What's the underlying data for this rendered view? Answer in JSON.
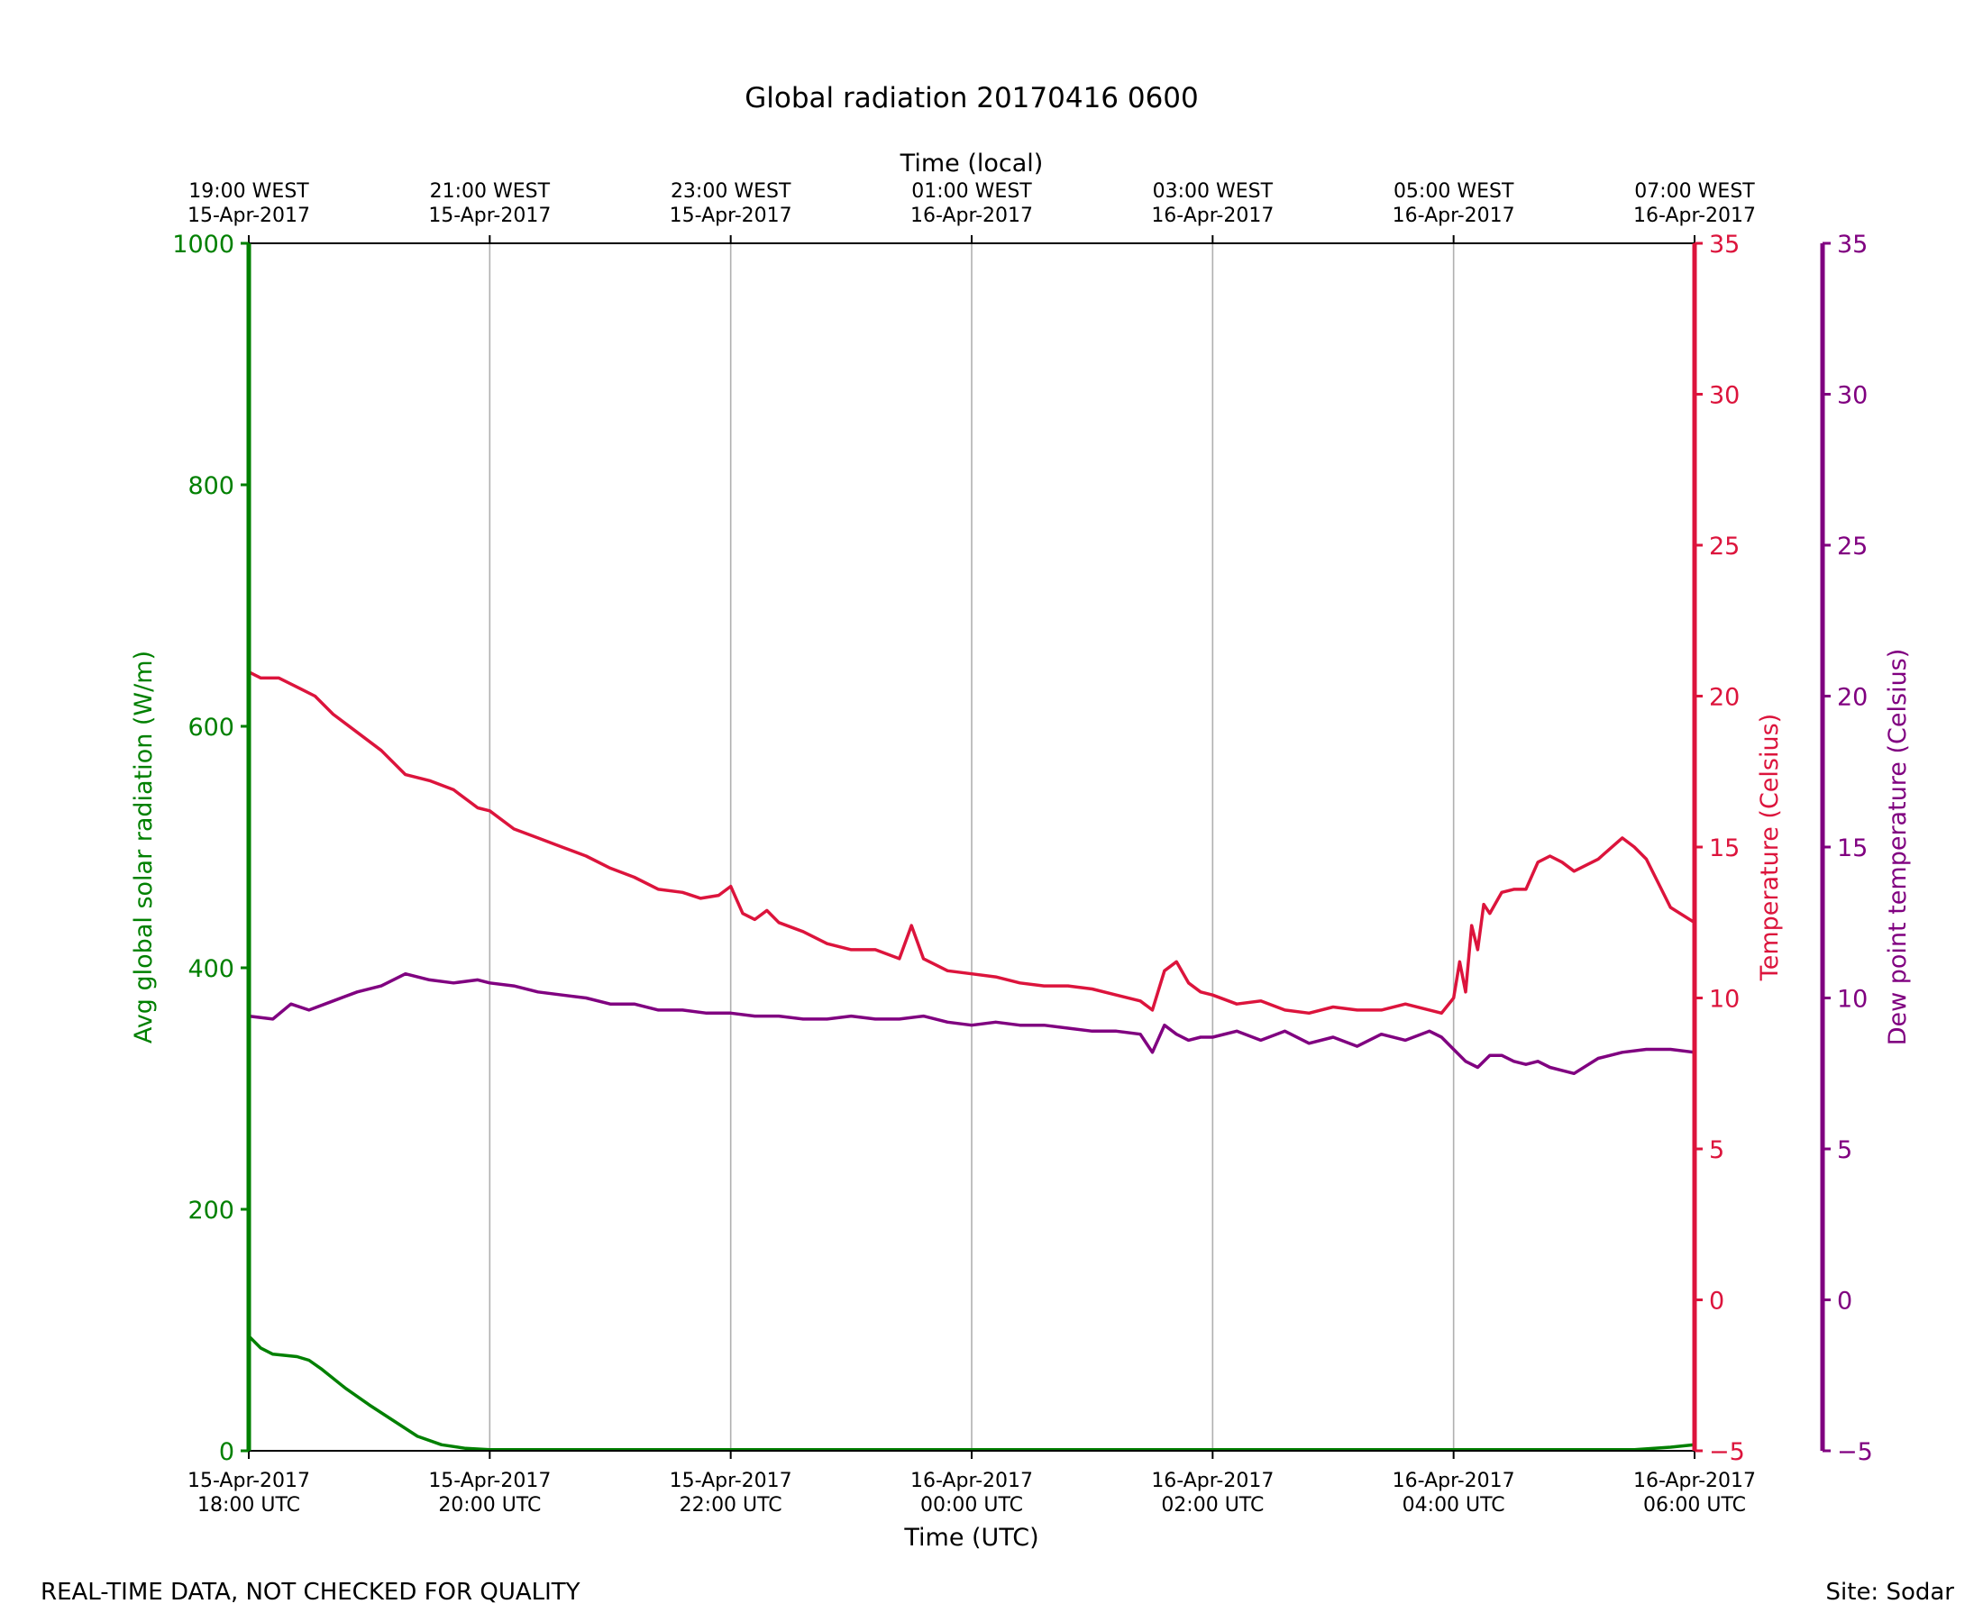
{
  "chart_data": {
    "type": "line",
    "title": "Global radiation 20170416 0600",
    "footer_left": "REAL-TIME DATA, NOT CHECKED FOR QUALITY",
    "footer_right": "Site: Sodar",
    "x_axis": {
      "label": "Time (UTC)",
      "range_hours_utc": [
        18,
        30
      ],
      "ticks": [
        {
          "hour": 18,
          "date": "15-Apr-2017",
          "time": "18:00 UTC"
        },
        {
          "hour": 20,
          "date": "15-Apr-2017",
          "time": "20:00 UTC"
        },
        {
          "hour": 22,
          "date": "15-Apr-2017",
          "time": "22:00 UTC"
        },
        {
          "hour": 24,
          "date": "16-Apr-2017",
          "time": "00:00 UTC"
        },
        {
          "hour": 26,
          "date": "16-Apr-2017",
          "time": "02:00 UTC"
        },
        {
          "hour": 28,
          "date": "16-Apr-2017",
          "time": "04:00 UTC"
        },
        {
          "hour": 30,
          "date": "16-Apr-2017",
          "time": "06:00 UTC"
        }
      ]
    },
    "x_axis_top": {
      "label": "Time (local)",
      "ticks": [
        {
          "hour": 18,
          "time": "19:00 WEST",
          "date": "15-Apr-2017"
        },
        {
          "hour": 20,
          "time": "21:00 WEST",
          "date": "15-Apr-2017"
        },
        {
          "hour": 22,
          "time": "23:00 WEST",
          "date": "15-Apr-2017"
        },
        {
          "hour": 24,
          "time": "01:00 WEST",
          "date": "16-Apr-2017"
        },
        {
          "hour": 26,
          "time": "03:00 WEST",
          "date": "16-Apr-2017"
        },
        {
          "hour": 28,
          "time": "05:00 WEST",
          "date": "16-Apr-2017"
        },
        {
          "hour": 30,
          "time": "07:00 WEST",
          "date": "16-Apr-2017"
        }
      ]
    },
    "y_axis_left": {
      "label": "Avg global solar radiation (W/m)",
      "range": [
        0,
        1000
      ],
      "ticks": [
        "0",
        "200",
        "400",
        "600",
        "800",
        "1000"
      ],
      "color": "#008000"
    },
    "y_axis_right": {
      "label": "Temperature (Celsius)",
      "range": [
        -5,
        35
      ],
      "ticks": [
        "−5",
        "0",
        "5",
        "10",
        "15",
        "20",
        "25",
        "30",
        "35"
      ],
      "color": "#dc143c"
    },
    "y_axis_right2": {
      "label": "Dew point temperature (Celsius)",
      "range": [
        -5,
        35
      ],
      "ticks": [
        "−5",
        "0",
        "5",
        "10",
        "15",
        "20",
        "25",
        "30",
        "35"
      ],
      "color": "#800080"
    },
    "grid": {
      "vertical": true,
      "horizontal": false,
      "color": "#b0b0b0"
    },
    "series": [
      {
        "axis": "left",
        "color": "#008000",
        "x": [
          18.0,
          18.1,
          18.2,
          18.4,
          18.5,
          18.6,
          18.8,
          19.0,
          19.2,
          19.4,
          19.6,
          19.8,
          20.0,
          21.0,
          22.0,
          23.0,
          24.0,
          25.0,
          26.0,
          27.0,
          28.0,
          29.0,
          29.5,
          29.8,
          30.0
        ],
        "values": [
          95,
          85,
          80,
          78,
          75,
          68,
          52,
          38,
          25,
          12,
          5,
          2,
          1,
          1,
          1,
          1,
          1,
          1,
          1,
          1,
          1,
          1,
          1,
          3,
          5
        ]
      },
      {
        "axis": "right",
        "color": "#dc143c",
        "x": [
          18.0,
          18.1,
          18.25,
          18.4,
          18.55,
          18.7,
          18.9,
          19.1,
          19.3,
          19.5,
          19.7,
          19.9,
          20.0,
          20.2,
          20.4,
          20.6,
          20.8,
          21.0,
          21.2,
          21.4,
          21.6,
          21.75,
          21.9,
          22.0,
          22.1,
          22.2,
          22.3,
          22.4,
          22.6,
          22.8,
          23.0,
          23.2,
          23.4,
          23.5,
          23.6,
          23.8,
          24.0,
          24.2,
          24.4,
          24.6,
          24.8,
          25.0,
          25.2,
          25.4,
          25.5,
          25.6,
          25.7,
          25.8,
          25.9,
          26.0,
          26.2,
          26.4,
          26.6,
          26.8,
          27.0,
          27.2,
          27.4,
          27.6,
          27.8,
          27.9,
          28.0,
          28.05,
          28.1,
          28.15,
          28.2,
          28.25,
          28.3,
          28.4,
          28.5,
          28.6,
          28.7,
          28.8,
          28.9,
          29.0,
          29.2,
          29.4,
          29.5,
          29.6,
          29.8,
          30.0
        ],
        "values": [
          20.8,
          20.6,
          20.6,
          20.3,
          20.0,
          19.4,
          18.8,
          18.2,
          17.4,
          17.2,
          16.9,
          16.3,
          16.2,
          15.6,
          15.3,
          15.0,
          14.7,
          14.3,
          14.0,
          13.6,
          13.5,
          13.3,
          13.4,
          13.7,
          12.8,
          12.6,
          12.9,
          12.5,
          12.2,
          11.8,
          11.6,
          11.6,
          11.3,
          12.4,
          11.3,
          10.9,
          10.8,
          10.7,
          10.5,
          10.4,
          10.4,
          10.3,
          10.1,
          9.9,
          9.6,
          10.9,
          11.2,
          10.5,
          10.2,
          10.1,
          9.8,
          9.9,
          9.6,
          9.5,
          9.7,
          9.6,
          9.6,
          9.8,
          9.6,
          9.5,
          10.0,
          11.2,
          10.2,
          12.4,
          11.6,
          13.1,
          12.8,
          13.5,
          13.6,
          13.6,
          14.5,
          14.7,
          14.5,
          14.2,
          14.6,
          15.3,
          15.0,
          14.6,
          13.0,
          12.5
        ]
      },
      {
        "axis": "right2",
        "color": "#800080",
        "x": [
          18.0,
          18.2,
          18.35,
          18.5,
          18.7,
          18.9,
          19.1,
          19.3,
          19.5,
          19.7,
          19.9,
          20.0,
          20.2,
          20.4,
          20.6,
          20.8,
          21.0,
          21.2,
          21.4,
          21.6,
          21.8,
          22.0,
          22.2,
          22.4,
          22.6,
          22.8,
          23.0,
          23.2,
          23.4,
          23.6,
          23.8,
          24.0,
          24.2,
          24.4,
          24.6,
          24.8,
          25.0,
          25.2,
          25.4,
          25.5,
          25.6,
          25.7,
          25.8,
          25.9,
          26.0,
          26.2,
          26.4,
          26.6,
          26.8,
          27.0,
          27.2,
          27.4,
          27.6,
          27.8,
          27.9,
          28.0,
          28.1,
          28.2,
          28.3,
          28.4,
          28.5,
          28.6,
          28.7,
          28.8,
          28.9,
          29.0,
          29.2,
          29.4,
          29.6,
          29.8,
          30.0
        ],
        "values": [
          9.4,
          9.3,
          9.8,
          9.6,
          9.9,
          10.2,
          10.4,
          10.8,
          10.6,
          10.5,
          10.6,
          10.5,
          10.4,
          10.2,
          10.1,
          10.0,
          9.8,
          9.8,
          9.6,
          9.6,
          9.5,
          9.5,
          9.4,
          9.4,
          9.3,
          9.3,
          9.4,
          9.3,
          9.3,
          9.4,
          9.2,
          9.1,
          9.2,
          9.1,
          9.1,
          9.0,
          8.9,
          8.9,
          8.8,
          8.2,
          9.1,
          8.8,
          8.6,
          8.7,
          8.7,
          8.9,
          8.6,
          8.9,
          8.5,
          8.7,
          8.4,
          8.8,
          8.6,
          8.9,
          8.7,
          8.3,
          7.9,
          7.7,
          8.1,
          8.1,
          7.9,
          7.8,
          7.9,
          7.7,
          7.6,
          7.5,
          8.0,
          8.2,
          8.3,
          8.3,
          8.2
        ]
      }
    ]
  }
}
